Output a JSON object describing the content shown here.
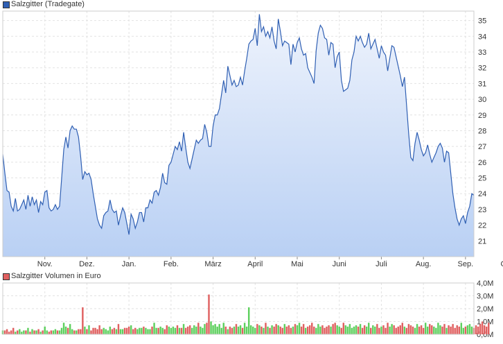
{
  "chart_data": [
    {
      "type": "area",
      "legend": "Salzgitter (Tradegate)",
      "series_color": "#2f5fb3",
      "fill_top": "#eef3fc",
      "fill_bottom": "#b9d0f4",
      "ylim": [
        20,
        35.6
      ],
      "yticks": [
        21,
        22,
        23,
        24,
        25,
        26,
        27,
        28,
        29,
        30,
        31,
        32,
        33,
        34,
        35
      ],
      "x_tick_labels": [
        "Nov.",
        "Dez.",
        "Jan.",
        "Feb.",
        "März",
        "April",
        "Mai",
        "Juni",
        "Juli",
        "Aug.",
        "Sep.",
        "Okt."
      ],
      "x_tick_index": [
        20,
        40,
        60,
        80,
        100,
        120,
        140,
        160,
        180,
        200,
        220,
        240
      ],
      "values": [
        26.5,
        25.3,
        24.2,
        24.1,
        23.2,
        22.9,
        23.7,
        22.9,
        23.0,
        23.3,
        23.6,
        23.0,
        23.9,
        23.2,
        23.8,
        23.3,
        23.6,
        22.8,
        23.5,
        23.3,
        24.1,
        24.2,
        23.1,
        22.9,
        23.0,
        23.3,
        23.0,
        23.2,
        25.0,
        26.8,
        27.6,
        26.9,
        28.0,
        28.3,
        28.1,
        28.1,
        27.6,
        26.4,
        24.9,
        25.4,
        25.2,
        25.3,
        24.9,
        24.0,
        23.2,
        22.4,
        22.0,
        21.8,
        22.6,
        22.8,
        22.9,
        23.6,
        23.0,
        22.8,
        22.9,
        22.0,
        22.6,
        23.1,
        22.8,
        22.1,
        21.4,
        22.7,
        22.4,
        21.8,
        22.2,
        22.8,
        22.8,
        22.2,
        23.1,
        23.1,
        23.6,
        23.4,
        24.1,
        24.2,
        23.9,
        24.4,
        25.3,
        24.7,
        24.6,
        25.8,
        26.0,
        26.5,
        27.0,
        26.8,
        27.3,
        26.7,
        27.9,
        26.9,
        26.0,
        25.6,
        26.2,
        26.8,
        27.4,
        27.2,
        27.4,
        27.5,
        28.4,
        27.9,
        27.0,
        27.0,
        28.3,
        29.0,
        29.0,
        29.4,
        30.3,
        31.2,
        30.4,
        32.1,
        31.5,
        30.9,
        31.2,
        30.8,
        30.9,
        31.4,
        30.9,
        31.8,
        32.6,
        33.5,
        33.7,
        33.8,
        34.5,
        33.4,
        35.4,
        34.3,
        34.6,
        34.0,
        34.3,
        33.9,
        34.6,
        33.7,
        33.2,
        35.1,
        34.3,
        33.4,
        33.7,
        33.6,
        33.5,
        32.2,
        33.5,
        33.0,
        33.6,
        33.9,
        33.2,
        32.8,
        32.9,
        32.0,
        31.7,
        31.4,
        31.0,
        33.1,
        34.2,
        34.7,
        34.5,
        33.9,
        33.8,
        32.8,
        33.6,
        33.5,
        32.0,
        32.7,
        33.0,
        31.2,
        30.5,
        30.6,
        30.7,
        31.2,
        32.5,
        33.0,
        34.0,
        33.7,
        34.0,
        33.6,
        33.3,
        33.5,
        34.2,
        33.2,
        33.5,
        33.8,
        33.2,
        32.6,
        33.4,
        33.0,
        32.8,
        31.8,
        32.6,
        33.4,
        33.3,
        32.7,
        32.1,
        31.5,
        30.8,
        31.4,
        29.6,
        27.8,
        26.3,
        26.1,
        27.2,
        27.9,
        27.4,
        26.8,
        26.4,
        26.6,
        27.1,
        26.5,
        26.0,
        26.3,
        26.6,
        27.0,
        27.2,
        26.9,
        26.0,
        26.7,
        26.6,
        25.3,
        24.0,
        23.1,
        22.4,
        22.0,
        22.4,
        22.6,
        22.1,
        22.8,
        23.2,
        24.0,
        23.9
      ],
      "grid": true
    },
    {
      "type": "bar",
      "legend": "Salzgitter Volumen in Euro",
      "legend_color": "#e06060",
      "up_color": "#5ed05e",
      "down_color": "#e06060",
      "ylim": [
        0,
        4.0
      ],
      "yticks": [
        0,
        1,
        2,
        3,
        4
      ],
      "ytick_labels": [
        "0,0M",
        "1,0M",
        "2,0M",
        "3,0M",
        "4,0M"
      ],
      "unit": "Mio. Euro",
      "values": [
        0.3,
        0.3,
        0.4,
        0.2,
        0.3,
        0.5,
        0.2,
        0.3,
        0.4,
        0.2,
        0.3,
        0.3,
        0.5,
        0.2,
        0.4,
        0.3,
        0.3,
        0.4,
        0.2,
        0.3,
        0.6,
        0.3,
        0.2,
        0.3,
        0.3,
        0.4,
        0.3,
        0.3,
        0.5,
        0.9,
        0.6,
        0.5,
        0.8,
        0.4,
        0.3,
        0.3,
        0.4,
        0.4,
        2.1,
        0.6,
        0.4,
        0.7,
        0.3,
        0.5,
        0.5,
        0.4,
        0.7,
        0.4,
        0.5,
        0.4,
        0.3,
        0.6,
        0.4,
        0.5,
        0.4,
        0.8,
        0.4,
        0.4,
        0.5,
        0.5,
        0.6,
        0.7,
        0.4,
        0.5,
        0.4,
        0.5,
        0.5,
        0.6,
        0.5,
        0.4,
        0.4,
        0.6,
        0.9,
        0.5,
        0.5,
        0.6,
        0.5,
        0.4,
        0.7,
        0.6,
        0.5,
        0.6,
        0.5,
        0.7,
        0.5,
        0.5,
        0.8,
        0.5,
        0.6,
        0.7,
        0.5,
        0.7,
        0.6,
        0.9,
        0.6,
        0.5,
        0.8,
        0.9,
        3.1,
        1.0,
        0.7,
        0.8,
        0.6,
        0.8,
        0.5,
        0.9,
        0.6,
        0.4,
        0.6,
        0.5,
        0.6,
        0.8,
        0.6,
        0.7,
        0.5,
        0.9,
        0.6,
        2.1,
        0.7,
        0.6,
        0.5,
        0.8,
        0.7,
        0.6,
        0.5,
        0.9,
        0.6,
        0.5,
        0.7,
        0.6,
        0.8,
        0.7,
        0.6,
        0.5,
        0.8,
        0.6,
        0.7,
        0.5,
        0.6,
        0.8,
        0.7,
        0.9,
        0.6,
        0.8,
        0.5,
        0.6,
        0.7,
        0.9,
        0.6,
        0.5,
        0.8,
        0.6,
        0.7,
        0.5,
        0.6,
        0.7,
        0.6,
        0.8,
        0.9,
        0.7,
        0.6,
        0.5,
        0.9,
        0.7,
        0.6,
        0.8,
        0.5,
        0.6,
        0.7,
        0.6,
        0.8,
        0.5,
        0.7,
        0.6,
        0.9,
        0.5,
        0.7,
        0.6,
        0.8,
        0.5,
        0.6,
        0.7,
        0.5,
        0.9,
        0.6,
        0.8,
        0.7,
        0.5,
        0.6,
        0.7,
        0.9,
        0.6,
        0.5,
        0.8,
        0.7,
        0.6,
        0.5,
        0.8,
        0.6,
        0.7,
        0.5,
        0.9,
        0.6,
        0.8,
        0.7,
        0.6,
        0.5,
        0.9,
        0.7,
        0.6,
        0.8,
        0.5,
        0.7,
        0.6,
        0.8,
        0.5,
        0.7,
        0.6,
        0.9,
        0.5,
        0.6,
        0.7,
        0.8,
        0.6,
        0.5,
        0.7,
        0.6,
        0.8,
        1.0,
        0.7,
        0.6,
        0.9
      ]
    }
  ]
}
